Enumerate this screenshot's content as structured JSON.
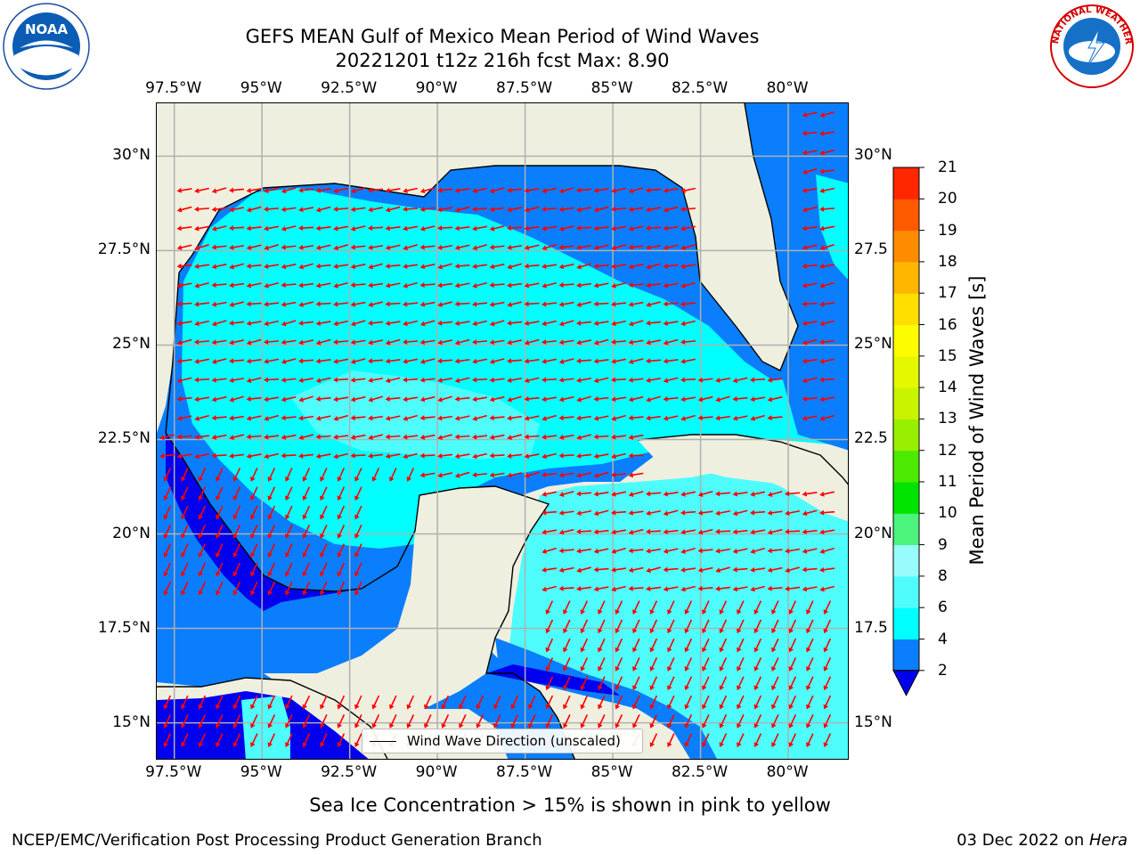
{
  "title": {
    "line1": "GEFS MEAN Gulf of Mexico Mean Period of Wind Waves",
    "line2": "20221201 t12z 216h fcst   Max: 8.90"
  },
  "logos": {
    "left": {
      "name": "noaa-logo",
      "text": "NOAA"
    },
    "right": {
      "name": "nws-logo",
      "text": "NATIONAL WEATHER SERVICE"
    }
  },
  "map": {
    "lon_ticks": [
      "97.5°W",
      "95°W",
      "92.5°W",
      "90°W",
      "87.5°W",
      "85°W",
      "82.5°W",
      "80°W"
    ],
    "lon_values": [
      -97.5,
      -95,
      -92.5,
      -90,
      -87.5,
      -85,
      -82.5,
      -80
    ],
    "lat_ticks_left": [
      "30°N",
      "27.5°N",
      "25°N",
      "22.5°N",
      "20°N",
      "17.5°N",
      "15°N"
    ],
    "lat_ticks_right": [
      "30°N",
      "27.5",
      "25°N",
      "22.5",
      "20°N",
      "17.5",
      "15°N"
    ],
    "lat_values": [
      30,
      27.5,
      25,
      22.5,
      20,
      17.5,
      15
    ],
    "extent": {
      "lon_min": -98,
      "lon_max": -78.25,
      "lat_min": 14.0,
      "lat_max": 31.4
    },
    "colors": {
      "land": "#efefdf",
      "ocean_2_4": "#0a7efc",
      "ocean_4_6": "#00ffff",
      "ocean_6_8": "#4efcfc",
      "ocean_0_2": "#0000ee",
      "arrow": "#ff0000",
      "grid": "#b0b0b0"
    },
    "legend": "Wind Wave Direction (unscaled)"
  },
  "colorbar": {
    "label": "Mean Period of Wind Waves [s]",
    "ticks": [
      "2",
      "4",
      "6",
      "8",
      "9",
      "10",
      "11",
      "12",
      "13",
      "14",
      "15",
      "16",
      "17",
      "18",
      "19",
      "20",
      "21"
    ],
    "colors": [
      "#0a7efc",
      "#00ffff",
      "#4efcfc",
      "#99fcfc",
      "#4cf37c",
      "#00e400",
      "#4cea00",
      "#99ef00",
      "#c9f400",
      "#e5f800",
      "#fefc00",
      "#ffde00",
      "#ffb600",
      "#ff8c00",
      "#ff5a00",
      "#ff2600"
    ],
    "extend_color": "#0000ee"
  },
  "subtitle": "Sea Ice Concentration > 15% is shown in pink to yellow",
  "footer": {
    "left": "NCEP/EMC/Verification Post Processing Product Generation Branch",
    "date": "03 Dec 2022 on ",
    "machine": "Hera"
  }
}
